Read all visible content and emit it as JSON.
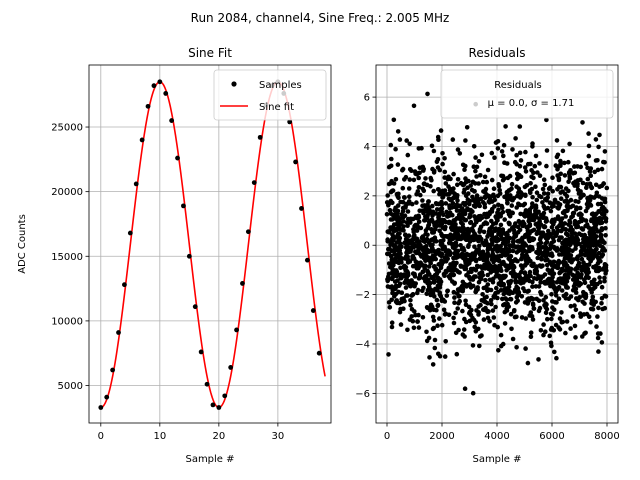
{
  "figure": {
    "suptitle": "Run 2084, channel4, Sine Freq.: 2.005 MHz",
    "colors": {
      "samples": "#000000",
      "fit": "#ff0000",
      "grid": "#b0b0b0",
      "legend_border": "#cccccc"
    }
  },
  "chart_data": [
    {
      "type": "line",
      "title": "Sine Fit",
      "xlabel": "Sample #",
      "ylabel": "ADC Counts",
      "xlim": [
        -2,
        39
      ],
      "ylim": [
        2100,
        29800
      ],
      "xticks": [
        0,
        10,
        20,
        30
      ],
      "yticks": [
        5000,
        10000,
        15000,
        20000,
        25000
      ],
      "grid": true,
      "legend": {
        "placement": "top-right",
        "entries": [
          "Samples",
          "Sine fit"
        ]
      },
      "series": [
        {
          "name": "Samples",
          "kind": "scatter",
          "x": [
            0,
            1,
            2,
            3,
            4,
            5,
            6,
            7,
            8,
            9,
            10,
            11,
            12,
            13,
            14,
            15,
            16,
            17,
            18,
            19,
            20,
            21,
            22,
            23,
            24,
            25,
            26,
            27,
            28,
            29,
            30,
            31,
            32,
            33,
            34,
            35,
            36,
            37
          ],
          "y": [
            3300,
            4100,
            6200,
            9100,
            12800,
            16800,
            20600,
            24000,
            26600,
            28200,
            28500,
            27600,
            25500,
            22600,
            18900,
            15000,
            11100,
            7600,
            5100,
            3500,
            3300,
            4200,
            6400,
            9300,
            12900,
            16900,
            20700,
            24200,
            26700,
            28200,
            28500,
            27600,
            25400,
            22300,
            18700,
            14700,
            10800,
            7500
          ]
        },
        {
          "name": "Sine fit",
          "kind": "line",
          "amplitude": 12600,
          "offset": 15900,
          "period": 20.0,
          "phase_deg": 90,
          "x_range": [
            0,
            38
          ]
        }
      ]
    },
    {
      "type": "scatter",
      "title": "Residuals",
      "xlabel": "Sample #",
      "ylabel": "",
      "xlim": [
        -400,
        8400
      ],
      "ylim": [
        -7.2,
        7.3
      ],
      "xticks": [
        0,
        2000,
        4000,
        6000,
        8000
      ],
      "yticks": [
        -6,
        -4,
        -2,
        0,
        2,
        4,
        6
      ],
      "grid": true,
      "legend": {
        "placement": "top-right",
        "entries": [
          "Residuals"
        ],
        "stats_line": "μ = 0.0, σ = 1.71"
      },
      "series": [
        {
          "name": "Residuals",
          "n_points": 8000,
          "mean": 0.0,
          "std": 1.71,
          "x_range": [
            0,
            8000
          ]
        }
      ]
    }
  ]
}
